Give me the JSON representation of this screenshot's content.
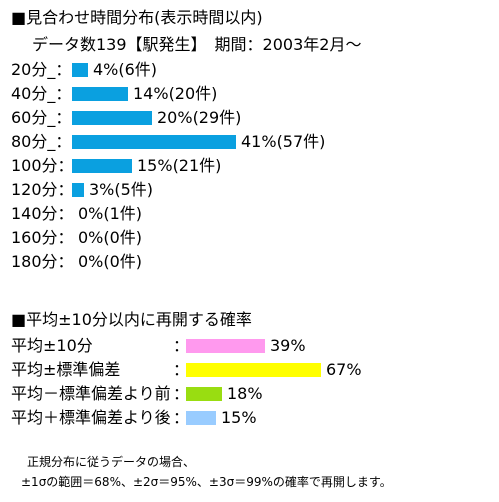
{
  "distribution": {
    "title": "■見合わせ時間分布(表示時間以内)",
    "subtitle": "データ数139【駅発生】　期間：2003年2月～",
    "bar_color": "#0aa0e0",
    "rows": [
      {
        "label": "20分_：",
        "text": "4%(6件)"
      },
      {
        "label": "40分_：",
        "text": "14%(20件)"
      },
      {
        "label": "60分_：",
        "text": "20%(29件)"
      },
      {
        "label": "80分_：",
        "text": "41%(57件)"
      },
      {
        "label": "100分：",
        "text": "15%(21件)"
      },
      {
        "label": "120分：",
        "text": "3%(5件)"
      },
      {
        "label": "140分：",
        "text": "0%(1件)"
      },
      {
        "label": "160分：",
        "text": "0%(0件)"
      },
      {
        "label": "180分：",
        "text": "0%(0件)"
      }
    ]
  },
  "probability": {
    "title": "■平均±10分以内に再開する確率",
    "colon": "：",
    "rows": [
      {
        "label": "平均±10分",
        "text": "39%",
        "color": "#ff99ee"
      },
      {
        "label": "平均±標準偏差",
        "text": "67%",
        "color": "#ffff00"
      },
      {
        "label": "平均－標準偏差より前",
        "text": "18%",
        "color": "#99dd11"
      },
      {
        "label": "平均＋標準偏差より後",
        "text": "15%",
        "color": "#99ccff"
      }
    ]
  },
  "note": {
    "line1": "正規分布に従うデータの場合、",
    "line2": "±1σの範囲＝68%、±2σ＝95%、±3σ＝99%の確率で再開します。"
  },
  "chart_data": [
    {
      "type": "bar",
      "title": "■見合わせ時間分布(表示時間以内)",
      "subtitle": "データ数139【駅発生】　期間：2003年2月～",
      "categories": [
        "20分",
        "40分",
        "60分",
        "80分",
        "100分",
        "120分",
        "140分",
        "160分",
        "180分"
      ],
      "series": [
        {
          "values": [
            4,
            14,
            20,
            41,
            15,
            3,
            0,
            0,
            0
          ]
        },
        {
          "values": [
            6,
            20,
            29,
            57,
            21,
            5,
            1,
            0,
            0
          ]
        }
      ],
      "orientation": "horizontal",
      "grid": false
    },
    {
      "type": "bar",
      "title": "■平均±10分以内に再開する確率",
      "categories": [
        "平均±10分",
        "平均±標準偏差",
        "平均－標準偏差より前",
        "平均＋標準偏差より後"
      ],
      "values": [
        39,
        67,
        18,
        15
      ],
      "orientation": "horizontal",
      "grid": false
    }
  ]
}
